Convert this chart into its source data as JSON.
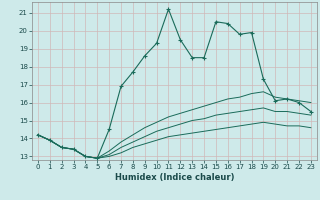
{
  "xlabel": "Humidex (Indice chaleur)",
  "bg_color": "#ceeaea",
  "grid_color": "#b8d8d8",
  "line_color": "#1a6b5a",
  "x_values": [
    0,
    1,
    2,
    3,
    4,
    5,
    6,
    7,
    8,
    9,
    10,
    11,
    12,
    13,
    14,
    15,
    16,
    17,
    18,
    19,
    20,
    21,
    22,
    23
  ],
  "series1": [
    14.2,
    13.9,
    13.5,
    13.4,
    13.0,
    12.9,
    14.5,
    16.9,
    17.7,
    18.6,
    19.3,
    21.2,
    19.5,
    18.5,
    18.5,
    20.5,
    20.4,
    19.8,
    19.9,
    17.3,
    16.1,
    16.2,
    16.0,
    15.5
  ],
  "series2": [
    14.2,
    13.9,
    13.5,
    13.4,
    13.0,
    12.9,
    13.3,
    13.8,
    14.2,
    14.6,
    14.9,
    15.2,
    15.4,
    15.6,
    15.8,
    16.0,
    16.2,
    16.3,
    16.5,
    16.6,
    16.3,
    16.2,
    16.1,
    16.0
  ],
  "series3": [
    14.2,
    13.9,
    13.5,
    13.4,
    13.0,
    12.9,
    13.1,
    13.5,
    13.8,
    14.1,
    14.4,
    14.6,
    14.8,
    15.0,
    15.1,
    15.3,
    15.4,
    15.5,
    15.6,
    15.7,
    15.5,
    15.5,
    15.4,
    15.3
  ],
  "series4": [
    14.2,
    13.9,
    13.5,
    13.4,
    13.0,
    12.9,
    13.0,
    13.2,
    13.5,
    13.7,
    13.9,
    14.1,
    14.2,
    14.3,
    14.4,
    14.5,
    14.6,
    14.7,
    14.8,
    14.9,
    14.8,
    14.7,
    14.7,
    14.6
  ],
  "ylim": [
    12.8,
    21.6
  ],
  "xlim": [
    -0.5,
    23.5
  ],
  "yticks": [
    13,
    14,
    15,
    16,
    17,
    18,
    19,
    20,
    21
  ],
  "xticks": [
    0,
    1,
    2,
    3,
    4,
    5,
    6,
    7,
    8,
    9,
    10,
    11,
    12,
    13,
    14,
    15,
    16,
    17,
    18,
    19,
    20,
    21,
    22,
    23
  ]
}
